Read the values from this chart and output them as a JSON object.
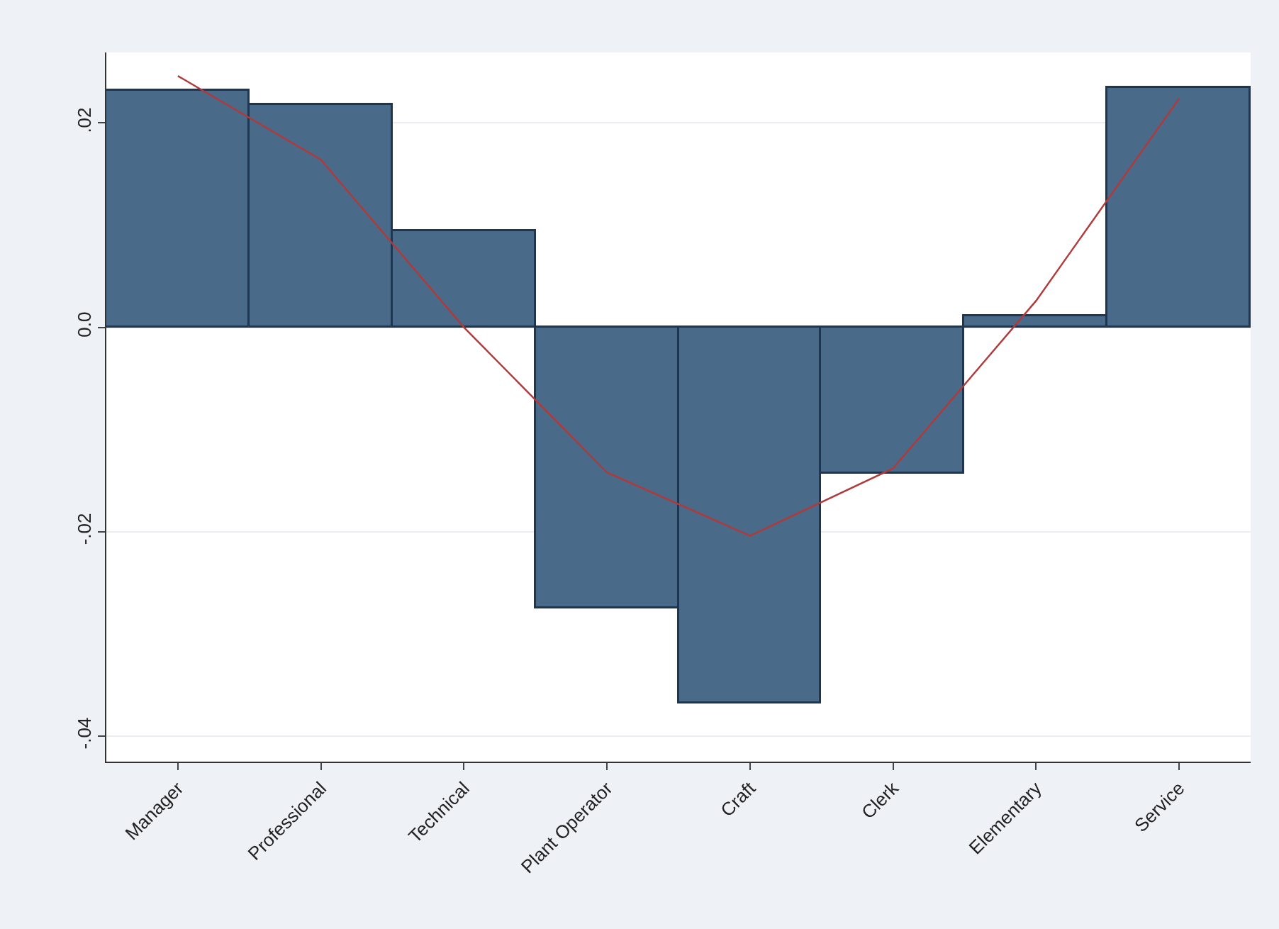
{
  "chart_data": {
    "type": "bar",
    "categories": [
      "Manager",
      "Professional",
      "Technical",
      "Plant Operator",
      "Craft",
      "Clerk",
      "Elementary",
      "Service"
    ],
    "series": [
      {
        "type": "bar",
        "color": "#4a6a8a",
        "values": [
          0.0232,
          0.0217,
          0.0094,
          -0.0275,
          -0.0368,
          -0.0143,
          0.0011,
          0.0235
        ]
      },
      {
        "type": "line",
        "color": "#b03a3a",
        "values": [
          0.0246,
          0.0164,
          0.0,
          -0.0142,
          -0.0204,
          -0.0138,
          0.0026,
          0.0224
        ]
      }
    ],
    "ylim": [
      -0.0425,
      0.0269
    ],
    "yticks": [
      {
        "value": 0.02,
        "label": ".02"
      },
      {
        "value": 0,
        "label": "0.0"
      },
      {
        "value": -0.02,
        "label": "-.02"
      },
      {
        "value": -0.04,
        "label": "-.04"
      }
    ],
    "grid": "y",
    "marker": "none",
    "line_style": "solid"
  }
}
